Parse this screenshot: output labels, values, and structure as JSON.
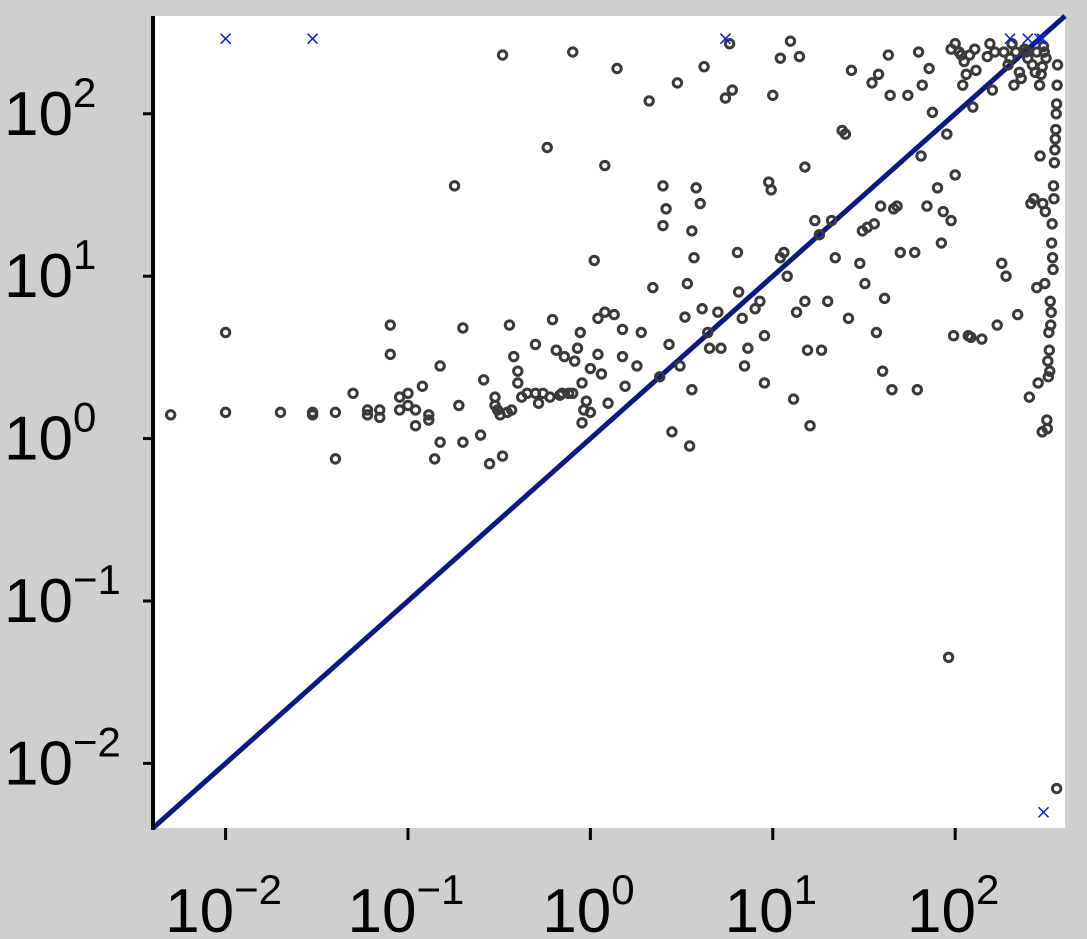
{
  "chart_data": {
    "type": "scatter",
    "title": "",
    "xlabel": "",
    "ylabel": "",
    "xscale": "log",
    "yscale": "log",
    "xlim": [
      0.004,
      400
    ],
    "ylim": [
      0.004,
      400
    ],
    "grid": false,
    "legend": "none",
    "colors": {
      "background": "#cfcfcf",
      "plot_area": "#ffffff",
      "points": "#3a3a3a",
      "diagonal": "#0a1a80",
      "markers": "#1020c8"
    },
    "x_ticks": [
      {
        "value": 0.01,
        "base": "10",
        "exp": "−2"
      },
      {
        "value": 0.1,
        "base": "10",
        "exp": "−1"
      },
      {
        "value": 1,
        "base": "10",
        "exp": "0"
      },
      {
        "value": 10,
        "base": "10",
        "exp": "1"
      },
      {
        "value": 100,
        "base": "10",
        "exp": "2"
      }
    ],
    "y_ticks": [
      {
        "value": 0.01,
        "base": "10",
        "exp": "−2"
      },
      {
        "value": 0.1,
        "base": "10",
        "exp": "−1"
      },
      {
        "value": 1,
        "base": "10",
        "exp": "0"
      },
      {
        "value": 10,
        "base": "10",
        "exp": "1"
      },
      {
        "value": 100,
        "base": "10",
        "exp": "2"
      }
    ],
    "diagonal": {
      "from": [
        0.004,
        0.004
      ],
      "to": [
        400,
        400
      ]
    },
    "series": [
      {
        "marker": "circle",
        "points": [
          [
            0.005,
            1.4
          ],
          [
            0.01,
            4.5
          ],
          [
            0.01,
            1.45
          ],
          [
            0.02,
            1.45
          ],
          [
            0.03,
            1.4
          ],
          [
            0.03,
            1.45
          ],
          [
            0.04,
            0.75
          ],
          [
            0.04,
            1.45
          ],
          [
            0.05,
            1.9
          ],
          [
            0.06,
            1.5
          ],
          [
            0.06,
            1.4
          ],
          [
            0.07,
            1.35
          ],
          [
            0.07,
            1.5
          ],
          [
            0.08,
            5
          ],
          [
            0.08,
            3.3
          ],
          [
            0.09,
            1.8
          ],
          [
            0.09,
            1.5
          ],
          [
            0.1,
            1.6
          ],
          [
            0.1,
            1.9
          ],
          [
            0.11,
            1.5
          ],
          [
            0.11,
            1.2
          ],
          [
            0.12,
            2.1
          ],
          [
            0.13,
            1.4
          ],
          [
            0.13,
            1.3
          ],
          [
            0.14,
            0.75
          ],
          [
            0.15,
            0.95
          ],
          [
            0.15,
            2.8
          ],
          [
            0.18,
            36
          ],
          [
            0.19,
            1.6
          ],
          [
            0.2,
            0.95
          ],
          [
            0.2,
            4.8
          ],
          [
            0.25,
            1.05
          ],
          [
            0.26,
            2.3
          ],
          [
            0.28,
            0.7
          ],
          [
            0.3,
            1.6
          ],
          [
            0.3,
            1.8
          ],
          [
            0.31,
            1.5
          ],
          [
            0.32,
            1.4
          ],
          [
            0.33,
            0.78
          ],
          [
            0.33,
            230
          ],
          [
            0.35,
            1.45
          ],
          [
            0.36,
            5
          ],
          [
            0.37,
            1.5
          ],
          [
            0.38,
            3.2
          ],
          [
            0.4,
            2.2
          ],
          [
            0.4,
            2.6
          ],
          [
            0.42,
            1.8
          ],
          [
            0.45,
            1.9
          ],
          [
            0.5,
            3.8
          ],
          [
            0.5,
            1.9
          ],
          [
            0.52,
            1.65
          ],
          [
            0.55,
            1.9
          ],
          [
            0.58,
            62
          ],
          [
            0.6,
            1.8
          ],
          [
            0.62,
            5.4
          ],
          [
            0.65,
            3.5
          ],
          [
            0.68,
            1.85
          ],
          [
            0.7,
            1.9
          ],
          [
            0.72,
            3.2
          ],
          [
            0.76,
            1.9
          ],
          [
            0.8,
            1.9
          ],
          [
            0.8,
            240
          ],
          [
            0.82,
            3
          ],
          [
            0.85,
            3.6
          ],
          [
            0.88,
            4.5
          ],
          [
            0.9,
            2.2
          ],
          [
            0.9,
            1.25
          ],
          [
            0.92,
            1.5
          ],
          [
            0.95,
            1.7
          ],
          [
            1,
            2.7
          ],
          [
            1,
            1.45
          ],
          [
            1.05,
            12.5
          ],
          [
            1.1,
            5.5
          ],
          [
            1.1,
            3.3
          ],
          [
            1.15,
            2.5
          ],
          [
            1.2,
            48
          ],
          [
            1.2,
            6
          ],
          [
            1.25,
            1.65
          ],
          [
            1.35,
            5.8
          ],
          [
            1.4,
            190
          ],
          [
            1.5,
            3.2
          ],
          [
            1.5,
            4.7
          ],
          [
            1.55,
            2.1
          ],
          [
            1.8,
            2.8
          ],
          [
            1.9,
            4.5
          ],
          [
            2.1,
            120
          ],
          [
            2.2,
            8.5
          ],
          [
            2.4,
            2.4
          ],
          [
            2.5,
            20.5
          ],
          [
            2.5,
            36
          ],
          [
            2.6,
            26
          ],
          [
            2.7,
            3.8
          ],
          [
            2.8,
            1.1
          ],
          [
            3,
            155
          ],
          [
            3.1,
            2.8
          ],
          [
            3.3,
            5.6
          ],
          [
            3.4,
            9
          ],
          [
            3.5,
            0.9
          ],
          [
            3.6,
            19
          ],
          [
            3.6,
            2
          ],
          [
            3.7,
            13
          ],
          [
            3.8,
            35
          ],
          [
            4,
            28
          ],
          [
            4.1,
            6.3
          ],
          [
            4.2,
            195
          ],
          [
            4.4,
            4.5
          ],
          [
            4.5,
            3.6
          ],
          [
            5,
            6
          ],
          [
            5.2,
            3.6
          ],
          [
            5.5,
            125
          ],
          [
            5.8,
            270
          ],
          [
            6,
            140
          ],
          [
            6.4,
            14
          ],
          [
            6.5,
            8
          ],
          [
            6.8,
            5.5
          ],
          [
            7,
            2.8
          ],
          [
            7.3,
            3.6
          ],
          [
            8,
            6.3
          ],
          [
            8.5,
            7
          ],
          [
            9,
            2.2
          ],
          [
            9,
            4.3
          ],
          [
            9.5,
            38
          ],
          [
            9.8,
            34
          ],
          [
            10,
            130
          ],
          [
            11,
            220
          ],
          [
            11,
            13
          ],
          [
            11.5,
            14
          ],
          [
            12,
            10
          ],
          [
            12.5,
            280
          ],
          [
            13,
            1.75
          ],
          [
            13.5,
            6
          ],
          [
            14,
            225
          ],
          [
            15,
            47
          ],
          [
            15,
            7
          ],
          [
            15.5,
            3.5
          ],
          [
            16,
            1.2
          ],
          [
            17,
            22
          ],
          [
            18,
            18
          ],
          [
            18.5,
            3.5
          ],
          [
            20,
            7
          ],
          [
            21,
            22
          ],
          [
            22,
            13
          ],
          [
            24,
            79
          ],
          [
            25,
            75
          ],
          [
            26,
            5.5
          ],
          [
            27,
            185
          ],
          [
            30,
            12
          ],
          [
            31,
            19
          ],
          [
            32,
            9
          ],
          [
            33,
            20
          ],
          [
            35,
            155
          ],
          [
            36,
            21
          ],
          [
            37,
            4.5
          ],
          [
            38,
            175
          ],
          [
            39,
            27
          ],
          [
            40,
            2.6
          ],
          [
            41,
            7.3
          ],
          [
            43,
            230
          ],
          [
            44,
            130
          ],
          [
            45,
            2
          ],
          [
            46,
            26
          ],
          [
            48,
            27
          ],
          [
            50,
            14
          ],
          [
            55,
            130
          ],
          [
            60,
            14
          ],
          [
            62,
            2
          ],
          [
            63,
            240
          ],
          [
            65,
            55
          ],
          [
            66,
            150
          ],
          [
            70,
            27
          ],
          [
            72,
            190
          ],
          [
            75,
            102
          ],
          [
            80,
            35
          ],
          [
            84,
            16
          ],
          [
            86,
            25
          ],
          [
            90,
            75
          ],
          [
            92,
            0.045
          ],
          [
            95,
            250
          ],
          [
            95,
            22
          ],
          [
            98,
            4.3
          ],
          [
            100,
            42
          ],
          [
            100,
            270
          ],
          [
            105,
            240
          ],
          [
            108,
            230
          ],
          [
            110,
            150
          ],
          [
            112,
            210
          ],
          [
            115,
            175
          ],
          [
            118,
            4.3
          ],
          [
            120,
            230
          ],
          [
            122,
            4.2
          ],
          [
            125,
            110
          ],
          [
            128,
            250
          ],
          [
            130,
            185
          ],
          [
            140,
            4.1
          ],
          [
            150,
            225
          ],
          [
            155,
            270
          ],
          [
            160,
            140
          ],
          [
            165,
            240
          ],
          [
            170,
            5
          ],
          [
            180,
            12
          ],
          [
            185,
            240
          ],
          [
            190,
            10
          ],
          [
            195,
            200
          ],
          [
            200,
            220
          ],
          [
            205,
            270
          ],
          [
            210,
            150
          ],
          [
            215,
            240
          ],
          [
            220,
            5.8
          ],
          [
            225,
            180
          ],
          [
            230,
            165
          ],
          [
            240,
            250
          ],
          [
            245,
            240
          ],
          [
            250,
            220
          ],
          [
            255,
            1.8
          ],
          [
            260,
            28
          ],
          [
            265,
            200
          ],
          [
            270,
            30
          ],
          [
            275,
            180
          ],
          [
            280,
            8.5
          ],
          [
            280,
            240
          ],
          [
            285,
            2.2
          ],
          [
            290,
            150
          ],
          [
            292,
            55
          ],
          [
            296,
            175
          ],
          [
            300,
            1.1
          ],
          [
            300,
            195
          ],
          [
            302,
            28
          ],
          [
            305,
            260
          ],
          [
            308,
            240
          ],
          [
            310,
            9
          ],
          [
            312,
            25
          ],
          [
            315,
            220
          ],
          [
            318,
            1.3
          ],
          [
            320,
            1.15
          ],
          [
            322,
            3
          ],
          [
            324,
            2.4
          ],
          [
            326,
            4.5
          ],
          [
            328,
            3.5
          ],
          [
            330,
            2.6
          ],
          [
            332,
            7
          ],
          [
            334,
            5
          ],
          [
            336,
            6
          ],
          [
            338,
            16
          ],
          [
            340,
            21
          ],
          [
            342,
            13
          ],
          [
            344,
            11
          ],
          [
            346,
            36
          ],
          [
            348,
            30
          ],
          [
            350,
            50
          ],
          [
            352,
            60
          ],
          [
            354,
            70
          ],
          [
            356,
            80
          ],
          [
            358,
            100
          ],
          [
            360,
            115
          ],
          [
            362,
            150
          ],
          [
            364,
            200
          ],
          [
            360,
            0.007
          ]
        ]
      },
      {
        "marker": "x",
        "points": [
          [
            0.01,
            290
          ],
          [
            0.03,
            290
          ],
          [
            5.5,
            290
          ],
          [
            200,
            290
          ],
          [
            250,
            290
          ],
          [
            290,
            290
          ],
          [
            300,
            290
          ],
          [
            305,
            0.005
          ]
        ]
      }
    ]
  }
}
